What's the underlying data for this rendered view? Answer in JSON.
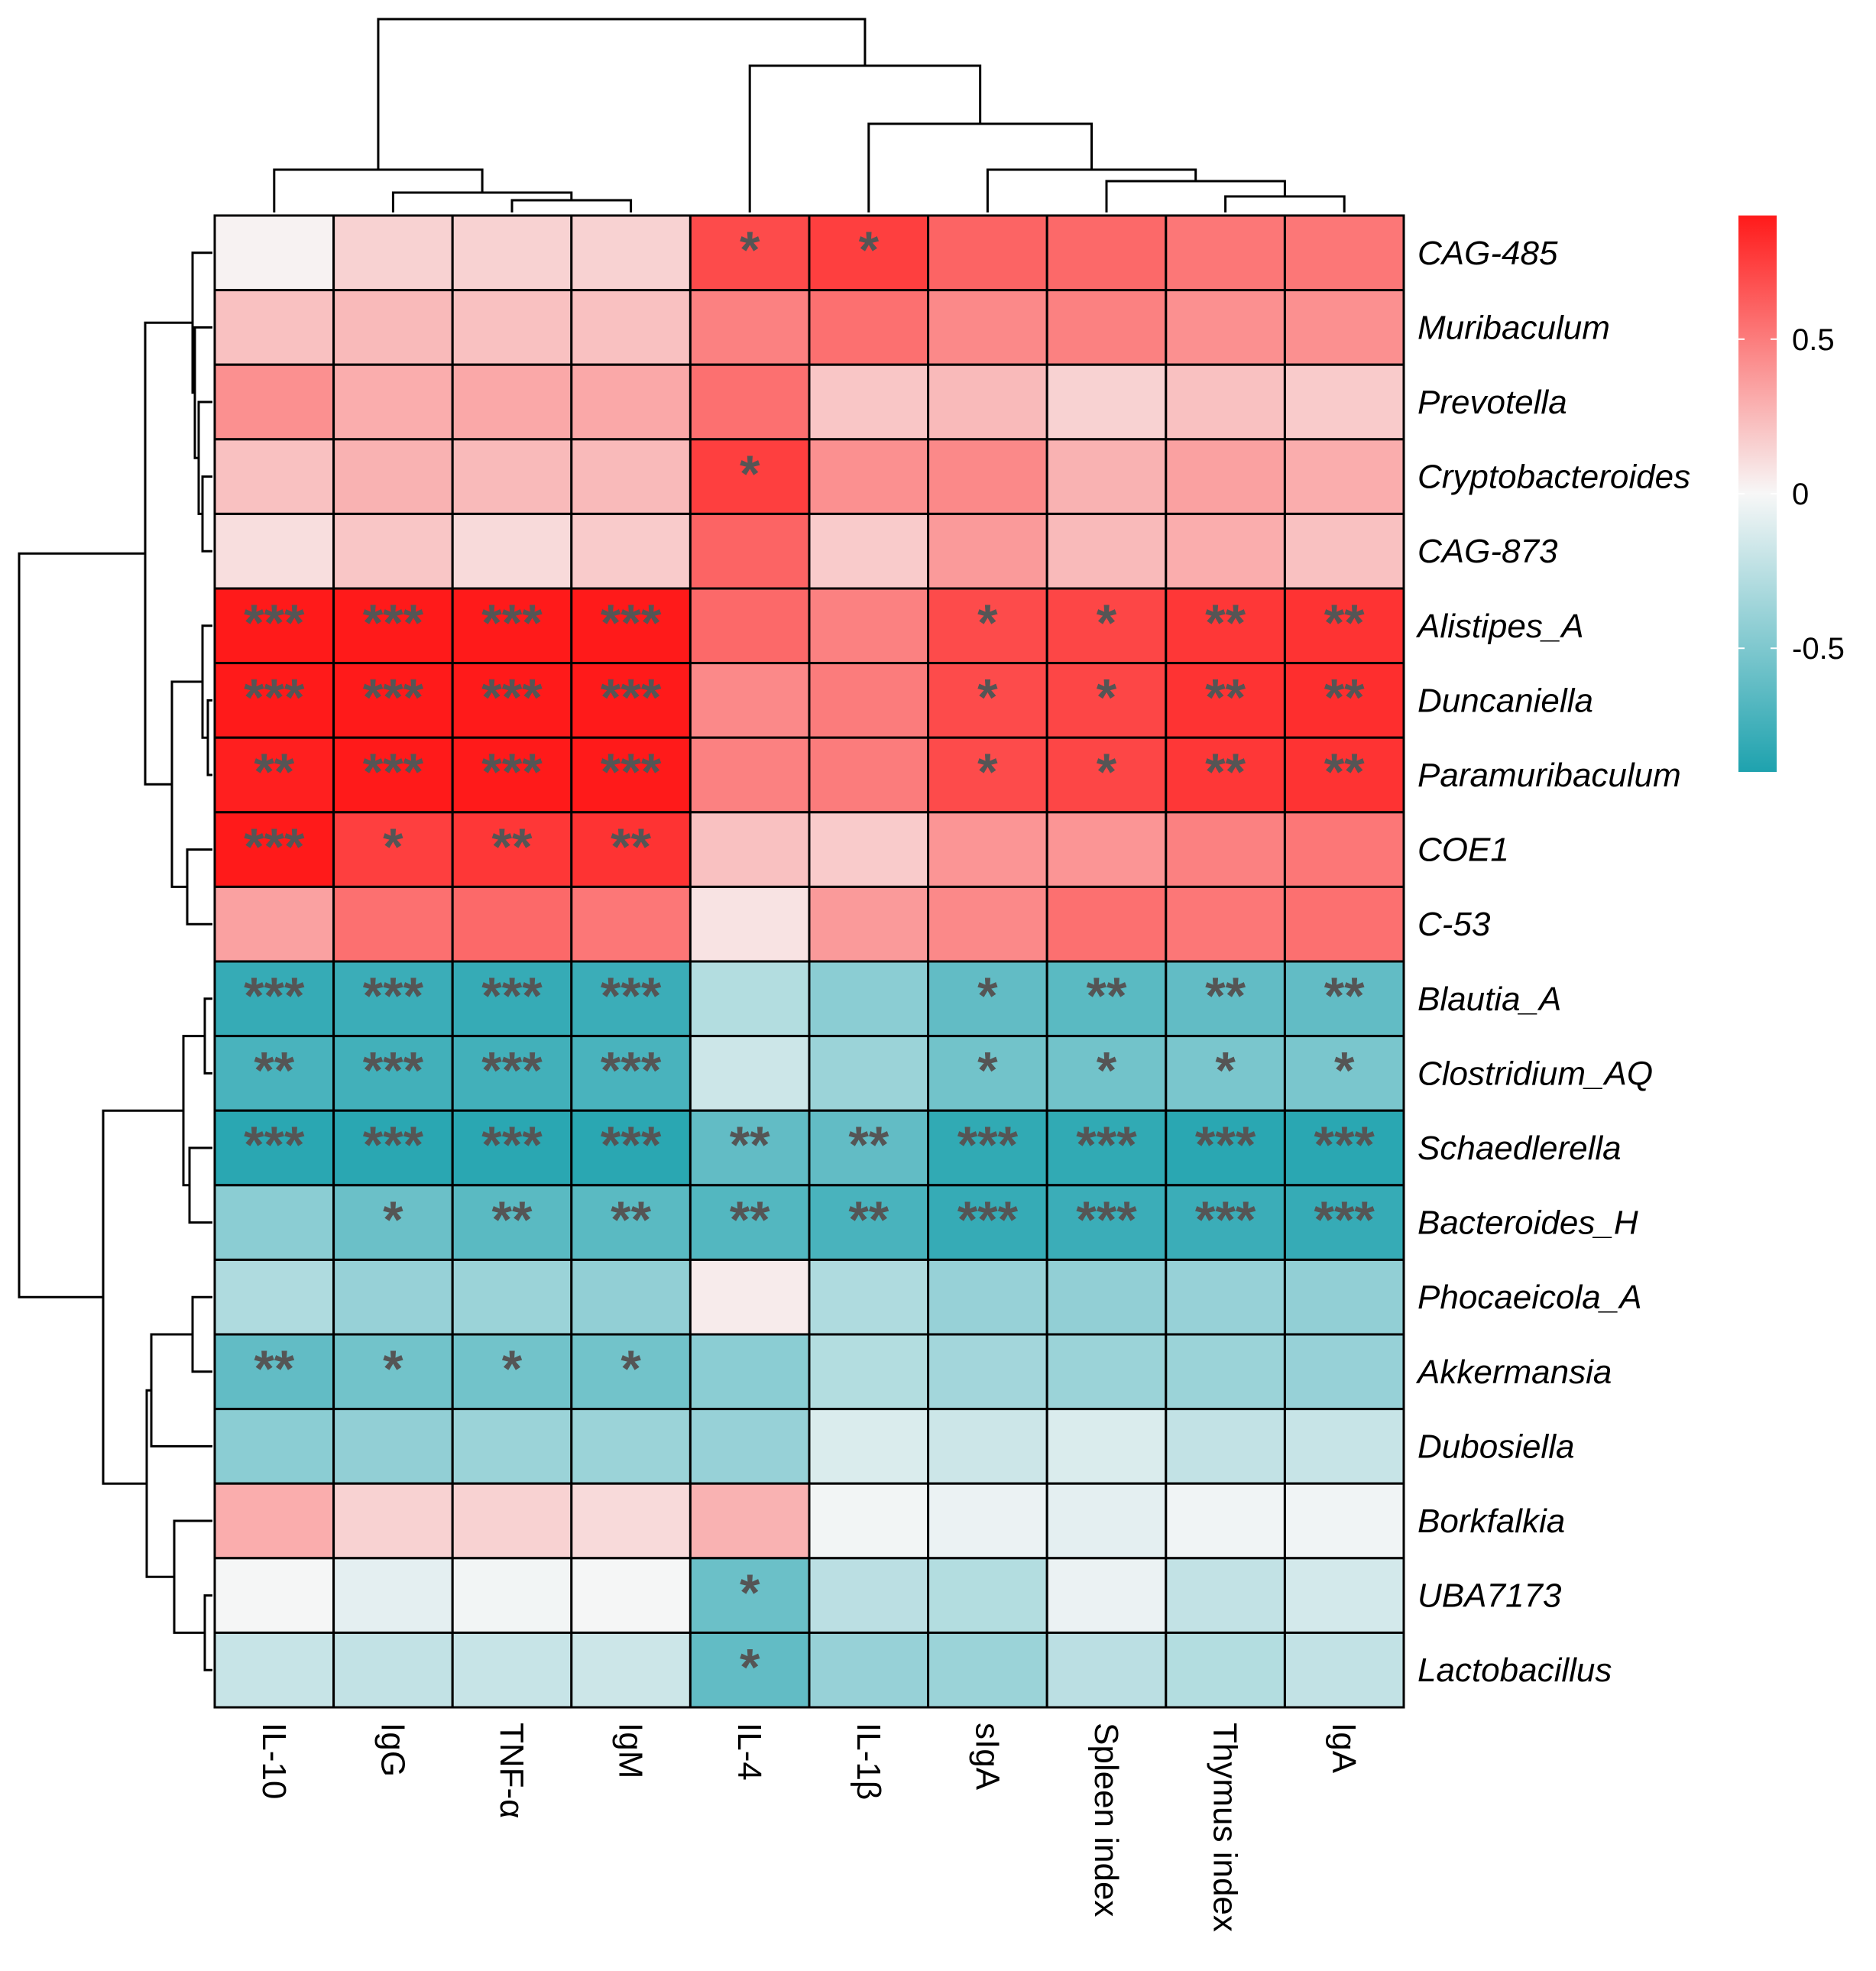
{
  "chart_data": {
    "type": "heatmap",
    "title": "",
    "columns": [
      "IL-10",
      "IgG",
      "TNF-α",
      "IgM",
      "IL-4",
      "IL-1β",
      "sIgA",
      "Spleen index",
      "Thymus index",
      "IgA"
    ],
    "rows": [
      "CAG-485",
      "Muribaculum",
      "Prevotella",
      "Cryptobacteroides",
      "CAG-873",
      "Alistipes_A",
      "Duncaniella",
      "Paramuribaculum",
      "COE1",
      "C-53",
      "Blautia_A",
      "Clostridium_AQ",
      "Schaedlerella",
      "Bacteroides_H",
      "Phocaeicola_A",
      "Akkermansia",
      "Dubosiella",
      "Borkfalkia",
      "UBA7173",
      "Lactobacillus"
    ],
    "values": [
      [
        0.02,
        0.15,
        0.15,
        0.15,
        0.7,
        0.75,
        0.6,
        0.58,
        0.52,
        0.52
      ],
      [
        0.22,
        0.25,
        0.22,
        0.22,
        0.48,
        0.55,
        0.45,
        0.48,
        0.42,
        0.42
      ],
      [
        0.42,
        0.3,
        0.32,
        0.32,
        0.55,
        0.2,
        0.25,
        0.15,
        0.22,
        0.18
      ],
      [
        0.22,
        0.28,
        0.25,
        0.25,
        0.75,
        0.42,
        0.45,
        0.28,
        0.35,
        0.3
      ],
      [
        0.1,
        0.2,
        0.12,
        0.18,
        0.6,
        0.18,
        0.38,
        0.25,
        0.3,
        0.22
      ],
      [
        0.95,
        0.95,
        0.95,
        0.95,
        0.58,
        0.48,
        0.7,
        0.72,
        0.78,
        0.8
      ],
      [
        0.95,
        0.95,
        0.95,
        0.95,
        0.45,
        0.5,
        0.7,
        0.72,
        0.8,
        0.82
      ],
      [
        0.88,
        0.95,
        0.95,
        0.95,
        0.48,
        0.5,
        0.7,
        0.72,
        0.78,
        0.8
      ],
      [
        0.93,
        0.75,
        0.78,
        0.8,
        0.22,
        0.18,
        0.4,
        0.4,
        0.48,
        0.52
      ],
      [
        0.35,
        0.55,
        0.58,
        0.52,
        0.08,
        0.38,
        0.45,
        0.55,
        0.52,
        0.55
      ],
      [
        -0.8,
        -0.78,
        -0.8,
        -0.78,
        -0.28,
        -0.45,
        -0.62,
        -0.65,
        -0.62,
        -0.62
      ],
      [
        -0.72,
        -0.75,
        -0.75,
        -0.72,
        -0.18,
        -0.38,
        -0.55,
        -0.55,
        -0.52,
        -0.52
      ],
      [
        -0.85,
        -0.85,
        -0.85,
        -0.85,
        -0.62,
        -0.62,
        -0.82,
        -0.82,
        -0.85,
        -0.85
      ],
      [
        -0.45,
        -0.58,
        -0.65,
        -0.65,
        -0.68,
        -0.72,
        -0.8,
        -0.78,
        -0.78,
        -0.8
      ],
      [
        -0.3,
        -0.4,
        -0.38,
        -0.42,
        0.05,
        -0.3,
        -0.4,
        -0.42,
        -0.4,
        -0.42
      ],
      [
        -0.62,
        -0.55,
        -0.55,
        -0.55,
        -0.45,
        -0.28,
        -0.35,
        -0.38,
        -0.38,
        -0.4
      ],
      [
        -0.45,
        -0.42,
        -0.38,
        -0.38,
        -0.4,
        -0.12,
        -0.18,
        -0.12,
        -0.22,
        -0.2
      ],
      [
        0.3,
        0.15,
        0.15,
        0.12,
        0.28,
        -0.02,
        -0.05,
        -0.08,
        -0.03,
        -0.03
      ],
      [
        -0.01,
        -0.08,
        -0.02,
        -0.01,
        -0.58,
        -0.25,
        -0.28,
        -0.05,
        -0.22,
        -0.15
      ],
      [
        -0.2,
        -0.22,
        -0.2,
        -0.18,
        -0.62,
        -0.4,
        -0.38,
        -0.25,
        -0.28,
        -0.22
      ]
    ],
    "significance": [
      [
        "",
        "",
        "",
        "",
        "*",
        "*",
        "",
        "",
        "",
        ""
      ],
      [
        "",
        "",
        "",
        "",
        "",
        "",
        "",
        "",
        "",
        ""
      ],
      [
        "",
        "",
        "",
        "",
        "",
        "",
        "",
        "",
        "",
        ""
      ],
      [
        "",
        "",
        "",
        "",
        "*",
        "",
        "",
        "",
        "",
        ""
      ],
      [
        "",
        "",
        "",
        "",
        "",
        "",
        "",
        "",
        "",
        ""
      ],
      [
        "***",
        "***",
        "***",
        "***",
        "",
        "",
        "*",
        "*",
        "**",
        "**"
      ],
      [
        "***",
        "***",
        "***",
        "***",
        "",
        "",
        "*",
        "*",
        "**",
        "**"
      ],
      [
        "**",
        "***",
        "***",
        "***",
        "",
        "",
        "*",
        "*",
        "**",
        "**"
      ],
      [
        "***",
        "*",
        "**",
        "**",
        "",
        "",
        "",
        "",
        "",
        ""
      ],
      [
        "",
        "",
        "",
        "",
        "",
        "",
        "",
        "",
        "",
        ""
      ],
      [
        "***",
        "***",
        "***",
        "***",
        "",
        "",
        "*",
        "**",
        "**",
        "**"
      ],
      [
        "**",
        "***",
        "***",
        "***",
        "",
        "",
        "*",
        "*",
        "*",
        "*"
      ],
      [
        "***",
        "***",
        "***",
        "***",
        "**",
        "**",
        "***",
        "***",
        "***",
        "***"
      ],
      [
        "",
        "*",
        "**",
        "**",
        "**",
        "**",
        "***",
        "***",
        "***",
        "***"
      ],
      [
        "",
        "",
        "",
        "",
        "",
        "",
        "",
        "",
        "",
        ""
      ],
      [
        "**",
        "*",
        "*",
        "*",
        "",
        "",
        "",
        "",
        "",
        ""
      ],
      [
        "",
        "",
        "",
        "",
        "",
        "",
        "",
        "",
        "",
        ""
      ],
      [
        "",
        "",
        "",
        "",
        "",
        "",
        "",
        "",
        "",
        ""
      ],
      [
        "",
        "",
        "",
        "",
        "*",
        "",
        "",
        "",
        "",
        ""
      ],
      [
        "",
        "",
        "",
        "",
        "*",
        "",
        "",
        "",
        "",
        ""
      ]
    ],
    "legend": {
      "ticks": [
        0.5,
        0,
        -0.5
      ],
      "tick_labels": [
        "0.5",
        "0",
        "-0.5"
      ],
      "range": [
        -0.9,
        0.9
      ],
      "placement": "top-right"
    },
    "colors": {
      "high": "#ff1a1a",
      "mid": "#f7f7f7",
      "low": "#1ea2ae"
    }
  }
}
